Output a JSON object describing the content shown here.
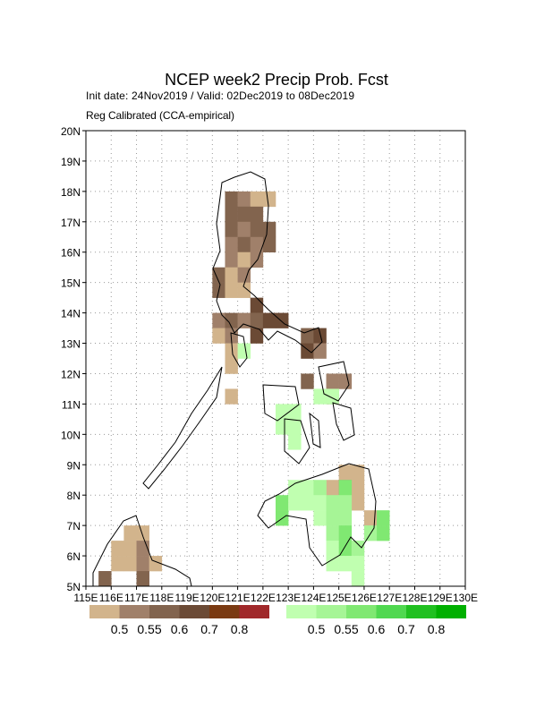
{
  "map_data": {
    "title": "NCEP week2 Precip Prob. Fcst",
    "subtitle": [
      "Init date: 24Nov2019 / Valid: 02Dec2019 to 08Dec2019",
      "Reg Calibrated (CCA-empirical)"
    ],
    "xlim": [
      115,
      130
    ],
    "ylim": [
      5,
      20
    ],
    "xticks": [
      {
        "value": 115,
        "label": "115E"
      },
      {
        "value": 116,
        "label": "116E"
      },
      {
        "value": 117,
        "label": "117E"
      },
      {
        "value": 118,
        "label": "118E"
      },
      {
        "value": 119,
        "label": "119E"
      },
      {
        "value": 120,
        "label": "120E"
      },
      {
        "value": 121,
        "label": "121E"
      },
      {
        "value": 122,
        "label": "122E"
      },
      {
        "value": 123,
        "label": "123E"
      },
      {
        "value": 124,
        "label": "124E"
      },
      {
        "value": 125,
        "label": "125E"
      },
      {
        "value": 126,
        "label": "126E"
      },
      {
        "value": 127,
        "label": "127E"
      },
      {
        "value": 128,
        "label": "128E"
      },
      {
        "value": 129,
        "label": "129E"
      },
      {
        "value": 130,
        "label": "130E"
      }
    ],
    "yticks": [
      {
        "value": 5,
        "label": "5N"
      },
      {
        "value": 6,
        "label": "6N"
      },
      {
        "value": 7,
        "label": "7N"
      },
      {
        "value": 8,
        "label": "8N"
      },
      {
        "value": 9,
        "label": "9N"
      },
      {
        "value": 10,
        "label": "10N"
      },
      {
        "value": 11,
        "label": "11N"
      },
      {
        "value": 12,
        "label": "12N"
      },
      {
        "value": 13,
        "label": "13N"
      },
      {
        "value": 14,
        "label": "14N"
      },
      {
        "value": 15,
        "label": "15N"
      },
      {
        "value": 16,
        "label": "16N"
      },
      {
        "value": 17,
        "label": "17N"
      },
      {
        "value": 18,
        "label": "18N"
      },
      {
        "value": 19,
        "label": "19N"
      },
      {
        "value": 20,
        "label": "20N"
      }
    ],
    "grid": true,
    "legend_levels": [
      0.5,
      0.55,
      0.6,
      0.7,
      0.8
    ],
    "dry_colors": [
      "#d2b48c",
      "#a0806a",
      "#82644e",
      "#6b4a35",
      "#7a3a12",
      "#a0282a"
    ],
    "wet_colors": [
      "#c0ffb0",
      "#a6f596",
      "#80e872",
      "#50d850",
      "#20c020",
      "#00b000"
    ],
    "dry_cells": [
      [
        120.5,
        17.5,
        0.6
      ],
      [
        121,
        17.5,
        0.55
      ],
      [
        121.5,
        17.5,
        0.5
      ],
      [
        122,
        17.5,
        0.5
      ],
      [
        120.5,
        17,
        0.6
      ],
      [
        121,
        17,
        0.6
      ],
      [
        121.5,
        17,
        0.6
      ],
      [
        120.5,
        16.5,
        0.6
      ],
      [
        121,
        16.5,
        0.55
      ],
      [
        121.5,
        16.5,
        0.6
      ],
      [
        122,
        16.5,
        0.6
      ],
      [
        120.5,
        16,
        0.55
      ],
      [
        121,
        16,
        0.6
      ],
      [
        121.5,
        16,
        0.55
      ],
      [
        122,
        16,
        0.6
      ],
      [
        120.5,
        15.5,
        0.55
      ],
      [
        121,
        15.5,
        0.5
      ],
      [
        121.5,
        15.5,
        0.55
      ],
      [
        120,
        15,
        0.6
      ],
      [
        120.5,
        15,
        0.5
      ],
      [
        121,
        15,
        0.55
      ],
      [
        120,
        14.5,
        0.6
      ],
      [
        120.5,
        14.5,
        0.5
      ],
      [
        121,
        14.5,
        0.5
      ],
      [
        121.5,
        14,
        0.7
      ],
      [
        120,
        13.5,
        0.55
      ],
      [
        120.5,
        13.5,
        0.6
      ],
      [
        121,
        13.5,
        0.55
      ],
      [
        121.5,
        13.5,
        0.6
      ],
      [
        122,
        13.5,
        0.7
      ],
      [
        122.5,
        13.5,
        0.7
      ],
      [
        120,
        13,
        0.5
      ],
      [
        120.5,
        13,
        0.55
      ],
      [
        121.5,
        13,
        0.7
      ],
      [
        123.5,
        13,
        0.6
      ],
      [
        124,
        13,
        0.7
      ],
      [
        120.5,
        12.5,
        0.5
      ],
      [
        123.5,
        12.5,
        0.7
      ],
      [
        124,
        12.5,
        0.55
      ],
      [
        120.5,
        12,
        0.5
      ],
      [
        123.5,
        11.5,
        0.6
      ],
      [
        124.5,
        11.5,
        0.55
      ],
      [
        125,
        11.5,
        0.55
      ],
      [
        120.5,
        11,
        0.5
      ],
      [
        124.5,
        11,
        0.55
      ],
      [
        125,
        8.5,
        0.5
      ],
      [
        125.5,
        8.5,
        0.5
      ],
      [
        124.5,
        8,
        0.5
      ],
      [
        125,
        8,
        0.55
      ],
      [
        125.5,
        8,
        0.5
      ],
      [
        125.5,
        7.5,
        0.5
      ],
      [
        126,
        7,
        0.5
      ],
      [
        116.5,
        6.5,
        0.5
      ],
      [
        117,
        6.5,
        0.5
      ],
      [
        116,
        6,
        0.5
      ],
      [
        116.5,
        6,
        0.5
      ],
      [
        117,
        6,
        0.55
      ],
      [
        116,
        5.5,
        0.5
      ],
      [
        116.5,
        5.5,
        0.5
      ],
      [
        117,
        5.5,
        0.55
      ],
      [
        117.5,
        5.5,
        0.5
      ],
      [
        115.5,
        5,
        0.6
      ],
      [
        117,
        5,
        0.6
      ]
    ],
    "wet_cells": [
      [
        121,
        12.5,
        0.5
      ],
      [
        122.5,
        10.5,
        0.5
      ],
      [
        123,
        10.5,
        0.5
      ],
      [
        122.5,
        10,
        0.5
      ],
      [
        123,
        10,
        0.5
      ],
      [
        123,
        9.5,
        0.5
      ],
      [
        124,
        11,
        0.5
      ],
      [
        124.5,
        11,
        0.5
      ],
      [
        123,
        8,
        0.5
      ],
      [
        123.5,
        8,
        0.5
      ],
      [
        124,
        8,
        0.55
      ],
      [
        125,
        8,
        0.6
      ],
      [
        122.5,
        7.5,
        0.6
      ],
      [
        123,
        7.5,
        0.5
      ],
      [
        123.5,
        7.5,
        0.5
      ],
      [
        124,
        7.5,
        0.5
      ],
      [
        124.5,
        7.5,
        0.55
      ],
      [
        125,
        7.5,
        0.55
      ],
      [
        122.5,
        7,
        0.6
      ],
      [
        124,
        7,
        0.5
      ],
      [
        124.5,
        7,
        0.55
      ],
      [
        125,
        7,
        0.55
      ],
      [
        126.5,
        7,
        0.6
      ],
      [
        124.5,
        6.5,
        0.55
      ],
      [
        125,
        6.5,
        0.6
      ],
      [
        126,
        6.5,
        0.55
      ],
      [
        126.5,
        6.5,
        0.6
      ],
      [
        124.5,
        6,
        0.5
      ],
      [
        125,
        6,
        0.6
      ],
      [
        125.5,
        6,
        0.55
      ],
      [
        124.5,
        5.5,
        0.5
      ],
      [
        125,
        5.5,
        0.5
      ],
      [
        125.5,
        5.5,
        0.5
      ],
      [
        125.5,
        5,
        0.5
      ]
    ]
  }
}
